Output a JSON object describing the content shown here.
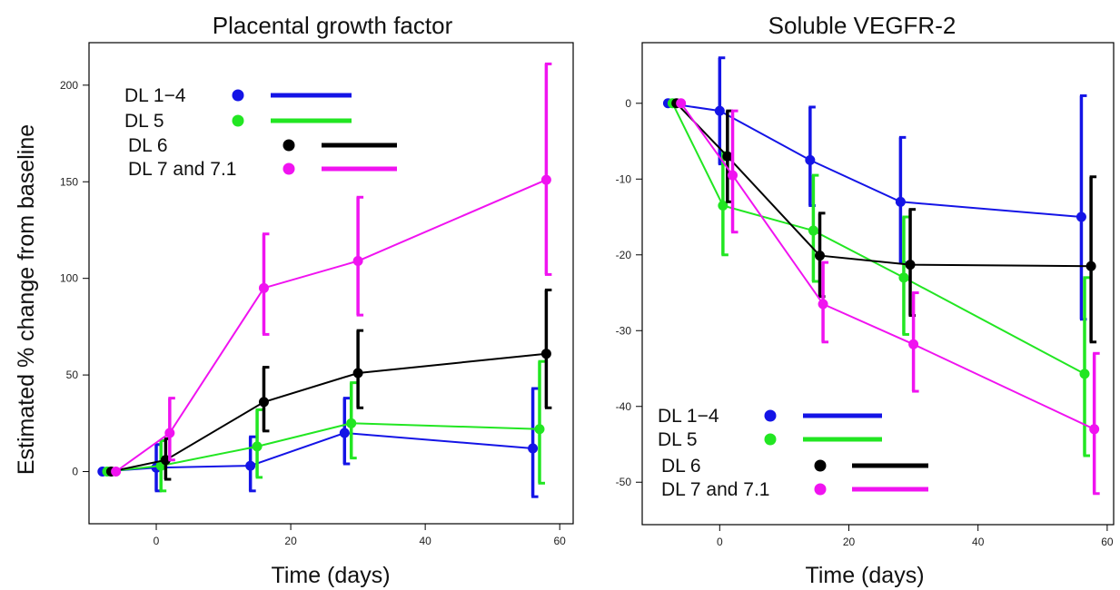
{
  "chart_data": [
    {
      "type": "line",
      "title": "Placental growth factor",
      "xlabel": "Time (days)",
      "ylabel": "Estimated % change from baseline",
      "xlim": [
        -10,
        62
      ],
      "ylim": [
        -27,
        222
      ],
      "xticks": [
        0,
        20,
        40,
        60
      ],
      "yticks": [
        0,
        50,
        100,
        150,
        200
      ],
      "grid": false,
      "legend_placement": "top-left",
      "series": [
        {
          "name": "DL 1−4",
          "color": "#1414e6",
          "points": [
            {
              "x": -8,
              "y": 0,
              "lo": 0,
              "hi": 0
            },
            {
              "x": 0,
              "y": 2,
              "lo": -10,
              "hi": 14
            },
            {
              "x": 14,
              "y": 3,
              "lo": -10,
              "hi": 18
            },
            {
              "x": 28,
              "y": 20,
              "lo": 4,
              "hi": 38
            },
            {
              "x": 56,
              "y": 12,
              "lo": -13,
              "hi": 43
            }
          ]
        },
        {
          "name": "DL 5",
          "color": "#22e622",
          "points": [
            {
              "x": -7.3,
              "y": 0,
              "lo": 0,
              "hi": 0
            },
            {
              "x": 0.7,
              "y": 3,
              "lo": -10,
              "hi": 16
            },
            {
              "x": 15,
              "y": 13,
              "lo": -3,
              "hi": 32
            },
            {
              "x": 29,
              "y": 25,
              "lo": 7,
              "hi": 46
            },
            {
              "x": 57,
              "y": 22,
              "lo": -6,
              "hi": 57
            }
          ]
        },
        {
          "name": "DL 6",
          "color": "#000000",
          "points": [
            {
              "x": -6.7,
              "y": 0,
              "lo": 0,
              "hi": 0
            },
            {
              "x": 1.4,
              "y": 6,
              "lo": -4,
              "hi": 17
            },
            {
              "x": 16,
              "y": 36,
              "lo": 21,
              "hi": 54
            },
            {
              "x": 30,
              "y": 51,
              "lo": 33,
              "hi": 73
            },
            {
              "x": 58,
              "y": 61,
              "lo": 33,
              "hi": 94
            }
          ]
        },
        {
          "name": "DL 7 and 7.1",
          "color": "#f013f0",
          "points": [
            {
              "x": -6,
              "y": 0,
              "lo": 0,
              "hi": 0
            },
            {
              "x": 2,
              "y": 20,
              "lo": 6,
              "hi": 38
            },
            {
              "x": 16,
              "y": 95,
              "lo": 71,
              "hi": 123
            },
            {
              "x": 30,
              "y": 109,
              "lo": 81,
              "hi": 142
            },
            {
              "x": 58,
              "y": 151,
              "lo": 102,
              "hi": 211
            }
          ]
        }
      ]
    },
    {
      "type": "line",
      "title": "Soluble VEGFR-2",
      "xlabel": "Time (days)",
      "ylabel": "",
      "xlim": [
        -12,
        61
      ],
      "ylim": [
        -55.6,
        8
      ],
      "xticks": [
        0,
        20,
        40,
        60
      ],
      "yticks": [
        0,
        -10,
        -20,
        -30,
        -40,
        -50
      ],
      "grid": false,
      "legend_placement": "bottom-left",
      "series": [
        {
          "name": "DL 1−4",
          "color": "#1414e6",
          "points": [
            {
              "x": -8,
              "y": 0,
              "lo": 0,
              "hi": 0
            },
            {
              "x": 0,
              "y": -1,
              "lo": -8,
              "hi": 6
            },
            {
              "x": 14,
              "y": -7.5,
              "lo": -13.5,
              "hi": -0.5
            },
            {
              "x": 28,
              "y": -13,
              "lo": -21,
              "hi": -4.5
            },
            {
              "x": 56,
              "y": -15,
              "lo": -28.5,
              "hi": 1
            }
          ]
        },
        {
          "name": "DL 5",
          "color": "#22e622",
          "points": [
            {
              "x": -7.3,
              "y": 0,
              "lo": 0,
              "hi": 0
            },
            {
              "x": 0.5,
              "y": -13.5,
              "lo": -20,
              "hi": -6.5
            },
            {
              "x": 14.5,
              "y": -16.8,
              "lo": -23.5,
              "hi": -9.5
            },
            {
              "x": 28.5,
              "y": -23,
              "lo": -30.5,
              "hi": -15
            },
            {
              "x": 56.5,
              "y": -35.7,
              "lo": -46.5,
              "hi": -23
            }
          ]
        },
        {
          "name": "DL 6",
          "color": "#000000",
          "points": [
            {
              "x": -6.7,
              "y": 0,
              "lo": 0,
              "hi": 0
            },
            {
              "x": 1.2,
              "y": -7,
              "lo": -13,
              "hi": -1
            },
            {
              "x": 15.5,
              "y": -20.1,
              "lo": -25.5,
              "hi": -14.5
            },
            {
              "x": 29.5,
              "y": -21.3,
              "lo": -28,
              "hi": -14
            },
            {
              "x": 57.5,
              "y": -21.5,
              "lo": -31.5,
              "hi": -9.7
            }
          ]
        },
        {
          "name": "DL 7 and 7.1",
          "color": "#f013f0",
          "points": [
            {
              "x": -6,
              "y": 0,
              "lo": 0,
              "hi": 0
            },
            {
              "x": 2,
              "y": -9.5,
              "lo": -17,
              "hi": -1
            },
            {
              "x": 16,
              "y": -26.5,
              "lo": -31.5,
              "hi": -21
            },
            {
              "x": 30,
              "y": -31.8,
              "lo": -38,
              "hi": -25
            },
            {
              "x": 58,
              "y": -43,
              "lo": -51.5,
              "hi": -33
            }
          ]
        }
      ]
    }
  ]
}
